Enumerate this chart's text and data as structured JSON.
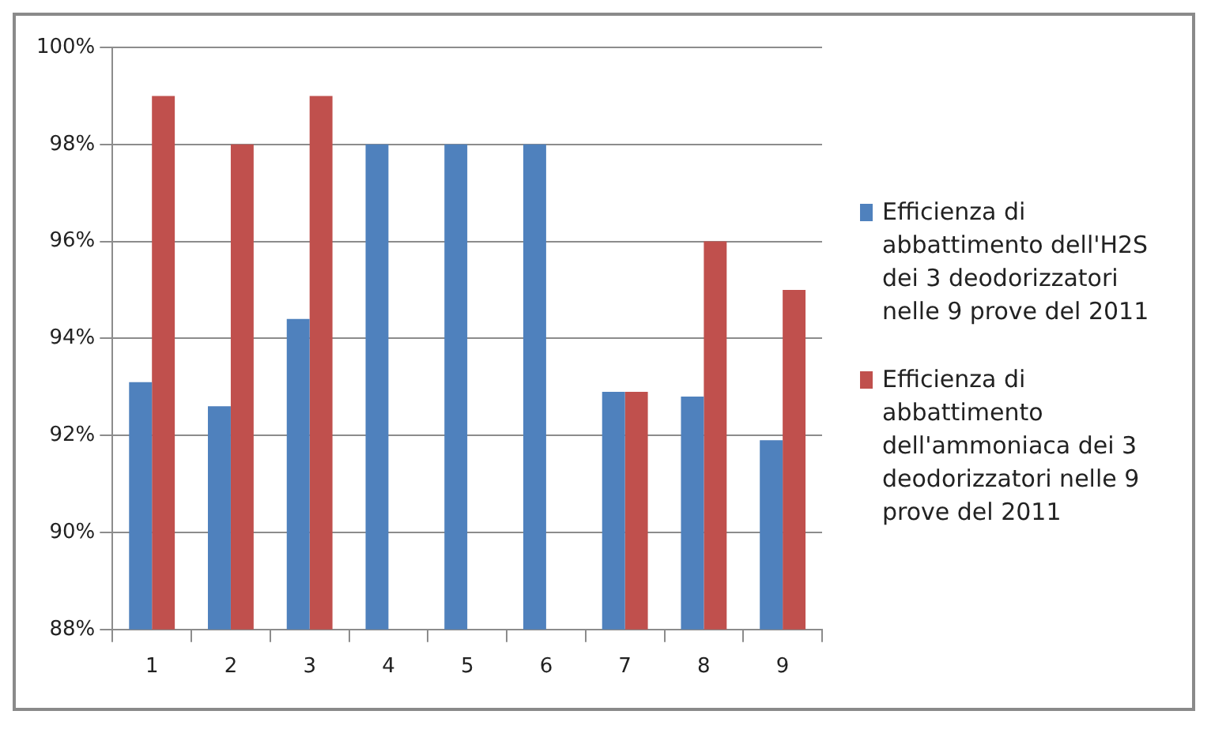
{
  "chart_data": {
    "type": "bar",
    "categories": [
      "1",
      "2",
      "3",
      "4",
      "5",
      "6",
      "7",
      "8",
      "9"
    ],
    "series": [
      {
        "name": "Efficienza di abbattimento dell'H2S dei 3 deodorizzatori nelle 9 prove del 2011",
        "color": "#4f81bd",
        "values": [
          93.1,
          92.6,
          94.4,
          98,
          98,
          98,
          92.9,
          92.8,
          91.9
        ]
      },
      {
        "name": "Efficienza di abbattimento dell'ammoniaca dei 3 deodorizzatori nelle 9 prove del 2011",
        "color": "#c0504d",
        "values": [
          99,
          98,
          99,
          null,
          null,
          null,
          92.9,
          96,
          95
        ]
      }
    ],
    "ylim": [
      88,
      100
    ],
    "yticks": [
      {
        "value": 88,
        "label": "88%"
      },
      {
        "value": 90,
        "label": "90%"
      },
      {
        "value": 92,
        "label": "92%"
      },
      {
        "value": 94,
        "label": "94%"
      },
      {
        "value": 96,
        "label": "96%"
      },
      {
        "value": 98,
        "label": "98%"
      },
      {
        "value": 100,
        "label": "100%"
      }
    ],
    "grid": "y",
    "legend": "right"
  }
}
